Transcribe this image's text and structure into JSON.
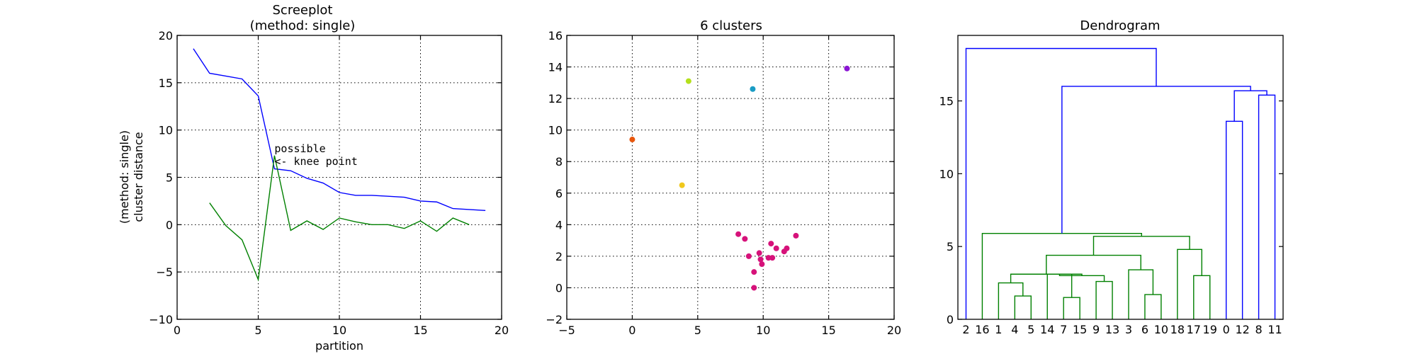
{
  "chart_data": [
    {
      "type": "line",
      "title_lines": [
        "Screeplot",
        "(method: single)"
      ],
      "xlabel": "partition",
      "ylabel_lines": [
        "(method: single)",
        "cluster distance"
      ],
      "xlim": [
        0,
        20
      ],
      "ylim": [
        -10,
        20
      ],
      "xticks": [
        0,
        5,
        10,
        15,
        20
      ],
      "yticks": [
        -10,
        -5,
        0,
        5,
        10,
        15,
        20
      ],
      "grid": true,
      "series": [
        {
          "color": "#0000ff",
          "x": [
            1,
            2,
            3,
            4,
            5,
            6,
            7,
            8,
            9,
            10,
            11,
            12,
            13,
            14,
            15,
            16,
            17,
            18,
            19
          ],
          "y": [
            18.6,
            16.0,
            15.7,
            15.4,
            13.6,
            5.9,
            5.7,
            4.9,
            4.4,
            3.4,
            3.1,
            3.1,
            3.0,
            2.9,
            2.5,
            2.4,
            1.7,
            1.6,
            1.5
          ]
        },
        {
          "color": "#008000",
          "x": [
            2,
            3,
            4,
            5,
            6,
            7,
            8,
            9,
            10,
            11,
            12,
            13,
            14,
            15,
            16,
            17,
            18
          ],
          "y": [
            2.3,
            -0.1,
            -1.6,
            -5.8,
            7.3,
            -0.6,
            0.4,
            -0.5,
            0.7,
            0.3,
            0.0,
            0.0,
            -0.4,
            0.4,
            -0.7,
            0.7,
            0.0
          ]
        }
      ],
      "annotations": [
        {
          "lines": [
            "possible",
            "<- knee point"
          ],
          "x": 6,
          "y": 7.3
        }
      ]
    },
    {
      "type": "scatter",
      "title": "6 clusters",
      "xlim": [
        -5,
        20
      ],
      "ylim": [
        -2,
        16
      ],
      "xticks": [
        -5,
        0,
        5,
        10,
        15,
        20
      ],
      "yticks": [
        -2,
        0,
        2,
        4,
        6,
        8,
        10,
        12,
        14,
        16
      ],
      "grid": true,
      "points": [
        {
          "x": 16.4,
          "y": 13.9,
          "color": "#8b16d4"
        },
        {
          "x": 4.3,
          "y": 13.1,
          "color": "#b4e01c"
        },
        {
          "x": 9.2,
          "y": 12.6,
          "color": "#1a9cc4"
        },
        {
          "x": 0.0,
          "y": 9.4,
          "color": "#e8560c"
        },
        {
          "x": 3.8,
          "y": 6.5,
          "color": "#f0c81c"
        },
        {
          "x": 12.5,
          "y": 3.3,
          "color": "#d6127a"
        },
        {
          "x": 8.1,
          "y": 3.4,
          "color": "#d6127a"
        },
        {
          "x": 8.6,
          "y": 3.1,
          "color": "#d6127a"
        },
        {
          "x": 10.6,
          "y": 2.8,
          "color": "#d6127a"
        },
        {
          "x": 11.0,
          "y": 2.5,
          "color": "#d6127a"
        },
        {
          "x": 11.8,
          "y": 2.5,
          "color": "#d6127a"
        },
        {
          "x": 11.6,
          "y": 2.3,
          "color": "#d6127a"
        },
        {
          "x": 9.7,
          "y": 2.2,
          "color": "#d6127a"
        },
        {
          "x": 8.9,
          "y": 2.0,
          "color": "#d6127a"
        },
        {
          "x": 10.4,
          "y": 1.9,
          "color": "#d6127a"
        },
        {
          "x": 10.7,
          "y": 1.9,
          "color": "#d6127a"
        },
        {
          "x": 9.8,
          "y": 1.8,
          "color": "#d6127a"
        },
        {
          "x": 9.9,
          "y": 1.5,
          "color": "#d6127a"
        },
        {
          "x": 9.3,
          "y": 1.0,
          "color": "#d6127a"
        },
        {
          "x": 9.3,
          "y": 0.0,
          "color": "#d6127a"
        }
      ]
    },
    {
      "type": "dendrogram",
      "title": "Dendrogram",
      "ylim": [
        0,
        19.5
      ],
      "yticks": [
        0,
        5,
        10,
        15
      ],
      "leaves": [
        "2",
        "16",
        "1",
        "4",
        "5",
        "14",
        "7",
        "15",
        "9",
        "13",
        "3",
        "6",
        "10",
        "18",
        "17",
        "19",
        "0",
        "12",
        "8",
        "11"
      ],
      "links": [
        {
          "left": "L3",
          "right": "L4",
          "height": 1.6,
          "color": "#008000"
        },
        {
          "left": "L2",
          "right": "N0",
          "height": 2.5,
          "color": "#008000"
        },
        {
          "left": "L6",
          "right": "L7",
          "height": 1.5,
          "color": "#008000"
        },
        {
          "left": "L5",
          "right": "N2",
          "height": 3.1,
          "color": "#008000"
        },
        {
          "left": "L8",
          "right": "L9",
          "height": 2.6,
          "color": "#008000"
        },
        {
          "left": "N3",
          "right": "N4",
          "height": 3.0,
          "color": "#008000"
        },
        {
          "left": "N1",
          "right": "N5",
          "height": 3.1,
          "color": "#008000"
        },
        {
          "left": "L11",
          "right": "L12",
          "height": 1.7,
          "color": "#008000"
        },
        {
          "left": "L10",
          "right": "N7",
          "height": 3.4,
          "color": "#008000"
        },
        {
          "left": "N6",
          "right": "N8",
          "height": 4.4,
          "color": "#008000"
        },
        {
          "left": "L14",
          "right": "L15",
          "height": 3.0,
          "color": "#008000"
        },
        {
          "left": "L13",
          "right": "N10",
          "height": 4.8,
          "color": "#008000"
        },
        {
          "left": "N9",
          "right": "N11",
          "height": 5.7,
          "color": "#008000"
        },
        {
          "left": "L1",
          "right": "N12",
          "height": 5.9,
          "color": "#008000"
        },
        {
          "left": "L16",
          "right": "L17",
          "height": 13.6,
          "color": "#0000ff"
        },
        {
          "left": "L18",
          "right": "L19",
          "height": 15.4,
          "color": "#0000ff"
        },
        {
          "left": "N14",
          "right": "N15",
          "height": 15.7,
          "color": "#0000ff"
        },
        {
          "left": "N13",
          "right": "N16",
          "height": 16.0,
          "color": "#0000ff"
        },
        {
          "left": "L0",
          "right": "N17",
          "height": 18.6,
          "color": "#0000ff"
        }
      ]
    }
  ]
}
